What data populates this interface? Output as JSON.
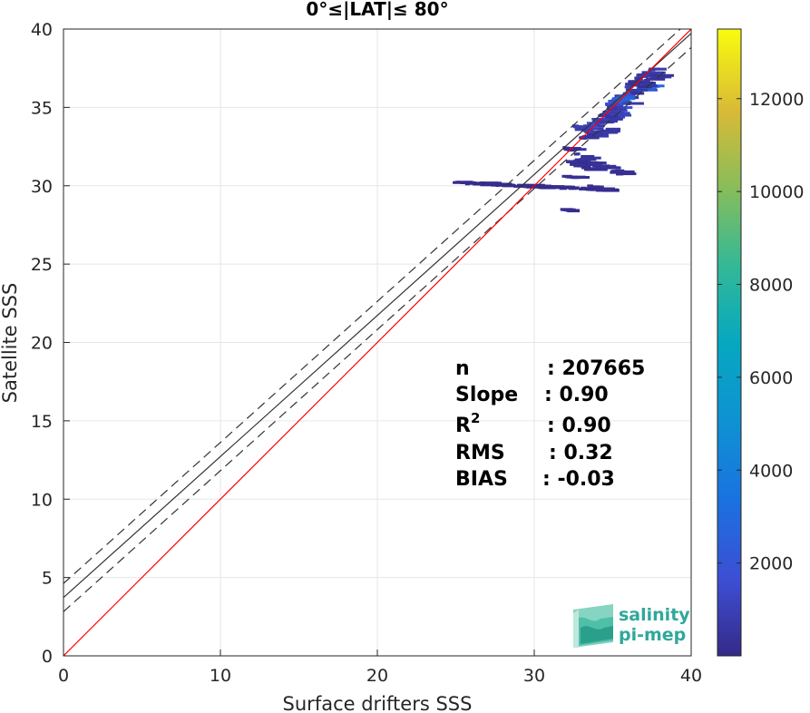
{
  "chart_data": {
    "type": "heatmap",
    "title": "0°≤|LAT|≤ 80°",
    "xlabel": "Surface drifters SSS",
    "ylabel": "Satellite SSS",
    "xlim": [
      0,
      40
    ],
    "ylim": [
      0,
      40
    ],
    "xticks": [
      "0",
      "10",
      "20",
      "30",
      "40"
    ],
    "yticks": [
      "0",
      "5",
      "10",
      "15",
      "20",
      "25",
      "30",
      "35",
      "40"
    ],
    "grid": true,
    "colorbar": {
      "range": [
        0,
        13500
      ],
      "ticks": [
        "2000",
        "4000",
        "6000",
        "8000",
        "10000",
        "12000"
      ],
      "tick_values": [
        2000,
        4000,
        6000,
        8000,
        10000,
        12000
      ],
      "colormap": "parula"
    },
    "lines": {
      "identity": {
        "slope": 1.0,
        "intercept": 0.0,
        "color": "#ff0000"
      },
      "fit": {
        "slope": 0.9,
        "intercept": 3.72,
        "color": "#333333"
      },
      "fit_upper": {
        "slope": 0.9,
        "intercept": 4.62,
        "color": "#333333",
        "dash": true
      },
      "fit_lower": {
        "slope": 0.9,
        "intercept": 2.82,
        "color": "#333333",
        "dash": true
      }
    },
    "density_cells": [
      [
        24.8,
        35.1,
        30.2,
        29.7,
        120
      ],
      [
        32.5,
        35.3,
        31.7,
        30.8,
        300
      ],
      [
        33.0,
        35.9,
        33.6,
        35.5,
        1200
      ],
      [
        34.0,
        36.6,
        34.5,
        36.8,
        800
      ],
      [
        35.5,
        37.6,
        36.4,
        37.5,
        600
      ],
      [
        34.5,
        37.0,
        35.2,
        36.4,
        2500
      ],
      [
        33.8,
        35.0,
        34.0,
        34.6,
        900
      ],
      [
        32.3,
        33.8,
        33.8,
        33.1,
        700
      ],
      [
        32.8,
        34.6,
        33.0,
        33.6,
        500
      ],
      [
        31.8,
        33.0,
        32.4,
        31.8,
        400
      ],
      [
        32.0,
        33.4,
        31.5,
        31.0,
        300
      ],
      [
        31.7,
        32.6,
        30.6,
        30.5,
        200
      ],
      [
        33.3,
        34.1,
        30.0,
        29.8,
        250
      ],
      [
        31.6,
        32.1,
        28.5,
        28.4,
        150
      ],
      [
        36.0,
        37.6,
        35.8,
        37.1,
        500
      ]
    ],
    "stats": [
      {
        "label": "n",
        "value": ": 207665"
      },
      {
        "label": "Slope",
        "value": ": 0.90"
      },
      {
        "label": "R",
        "sup": "2",
        "value": ": 0.90"
      },
      {
        "label": "RMS",
        "value": ": 0.32"
      },
      {
        "label": "BIAS",
        "value": ": -0.03"
      }
    ]
  },
  "logo": {
    "line1": "salinity",
    "line2": "pi-mep"
  }
}
